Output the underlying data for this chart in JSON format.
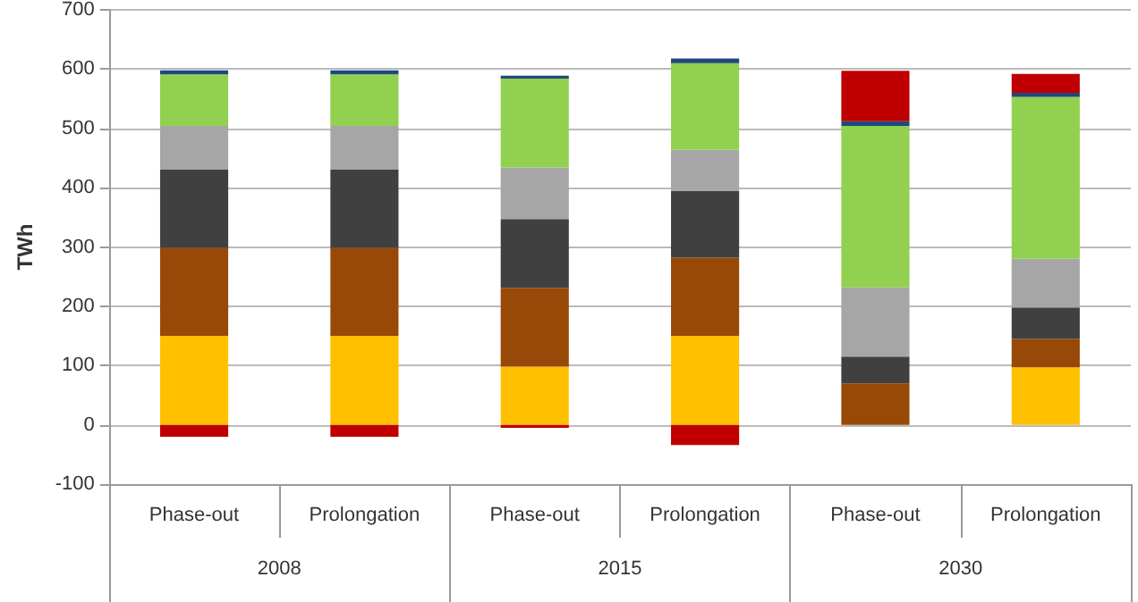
{
  "chart_data": {
    "type": "bar",
    "stacked": true,
    "ylabel": "TWh",
    "categories": [
      "Phase-out",
      "Prolongation",
      "Phase-out",
      "Prolongation",
      "Phase-out",
      "Prolongation"
    ],
    "annotations": [
      "2008",
      "2015",
      "2030"
    ],
    "series": [
      {
        "color": "#ffc000",
        "values": [
          150,
          150,
          98,
          150,
          0,
          97
        ]
      },
      {
        "color": "#984807",
        "values": [
          148,
          148,
          133,
          132,
          70,
          48
        ]
      },
      {
        "color": "#404040",
        "values": [
          133,
          133,
          116,
          112,
          45,
          53
        ]
      },
      {
        "color": "#a6a6a6",
        "values": [
          73,
          73,
          87,
          70,
          117,
          82
        ]
      },
      {
        "color": "#92d050",
        "values": [
          87,
          87,
          150,
          146,
          272,
          273
        ]
      },
      {
        "color": "#1f497d",
        "values": [
          7,
          7,
          5,
          8,
          8,
          7
        ]
      },
      {
        "color": "#c00000",
        "values": [
          -20,
          -20,
          -5,
          -34,
          85,
          32
        ]
      }
    ],
    "ylim": [
      -100,
      700
    ],
    "yticks": [
      -100,
      0,
      100,
      200,
      300,
      400,
      500,
      600,
      700
    ],
    "grid": "y",
    "legend": false
  }
}
